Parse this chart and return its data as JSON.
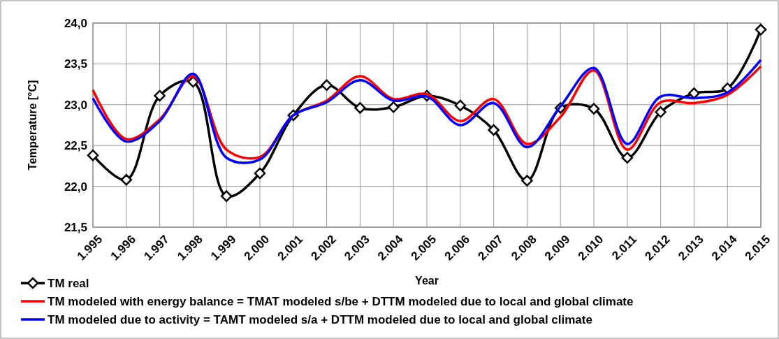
{
  "chart_data": {
    "type": "line",
    "xlabel": "Year",
    "ylabel": "Temperature [°C]",
    "categories": [
      "1.995",
      "1.996",
      "1.997",
      "1.998",
      "1.999",
      "2.000",
      "2.001",
      "2.002",
      "2.003",
      "2.004",
      "2.005",
      "2.006",
      "2.007",
      "2.008",
      "2.009",
      "2.010",
      "2.011",
      "2.012",
      "2.013",
      "2.014",
      "2.015"
    ],
    "series": [
      {
        "name": "TM real",
        "color": "#000000",
        "marker": "diamond",
        "values": [
          22.38,
          22.08,
          23.11,
          23.28,
          21.88,
          22.16,
          22.87,
          23.24,
          22.96,
          22.97,
          23.11,
          22.99,
          22.69,
          22.07,
          22.96,
          22.95,
          22.35,
          22.91,
          23.14,
          23.2,
          23.92
        ]
      },
      {
        "name": "TM modeled with energy balance = TMAT modeled s/be + DTTM modeled due to local and global climate",
        "color": "#ff0000",
        "marker": "none",
        "values": [
          23.18,
          22.58,
          22.82,
          23.35,
          22.45,
          22.36,
          22.87,
          23.05,
          23.35,
          23.07,
          23.13,
          22.8,
          23.07,
          22.52,
          22.85,
          23.42,
          22.45,
          23.03,
          23.02,
          23.12,
          23.47
        ]
      },
      {
        "name": "TM modeled due to activity = TAMT modeled s/a + DTTM modeled due to local and global climate",
        "color": "#0000ff",
        "marker": "none",
        "values": [
          23.08,
          22.55,
          22.8,
          23.38,
          22.35,
          22.33,
          22.87,
          23.03,
          23.3,
          23.05,
          23.1,
          22.75,
          23.02,
          22.48,
          22.98,
          23.45,
          22.52,
          23.1,
          23.08,
          23.15,
          23.55
        ]
      }
    ],
    "ylim": [
      21.5,
      24
    ],
    "yticks": [
      {
        "value": 21.5,
        "label": "21,5"
      },
      {
        "value": 22,
        "label": "22,0"
      },
      {
        "value": 22.5,
        "label": "22,5"
      },
      {
        "value": 23,
        "label": "23,0"
      },
      {
        "value": 23.5,
        "label": "23,5"
      },
      {
        "value": 24,
        "label": "24,0"
      }
    ],
    "grid": true,
    "legend": "bottom",
    "line_style": "solid"
  }
}
